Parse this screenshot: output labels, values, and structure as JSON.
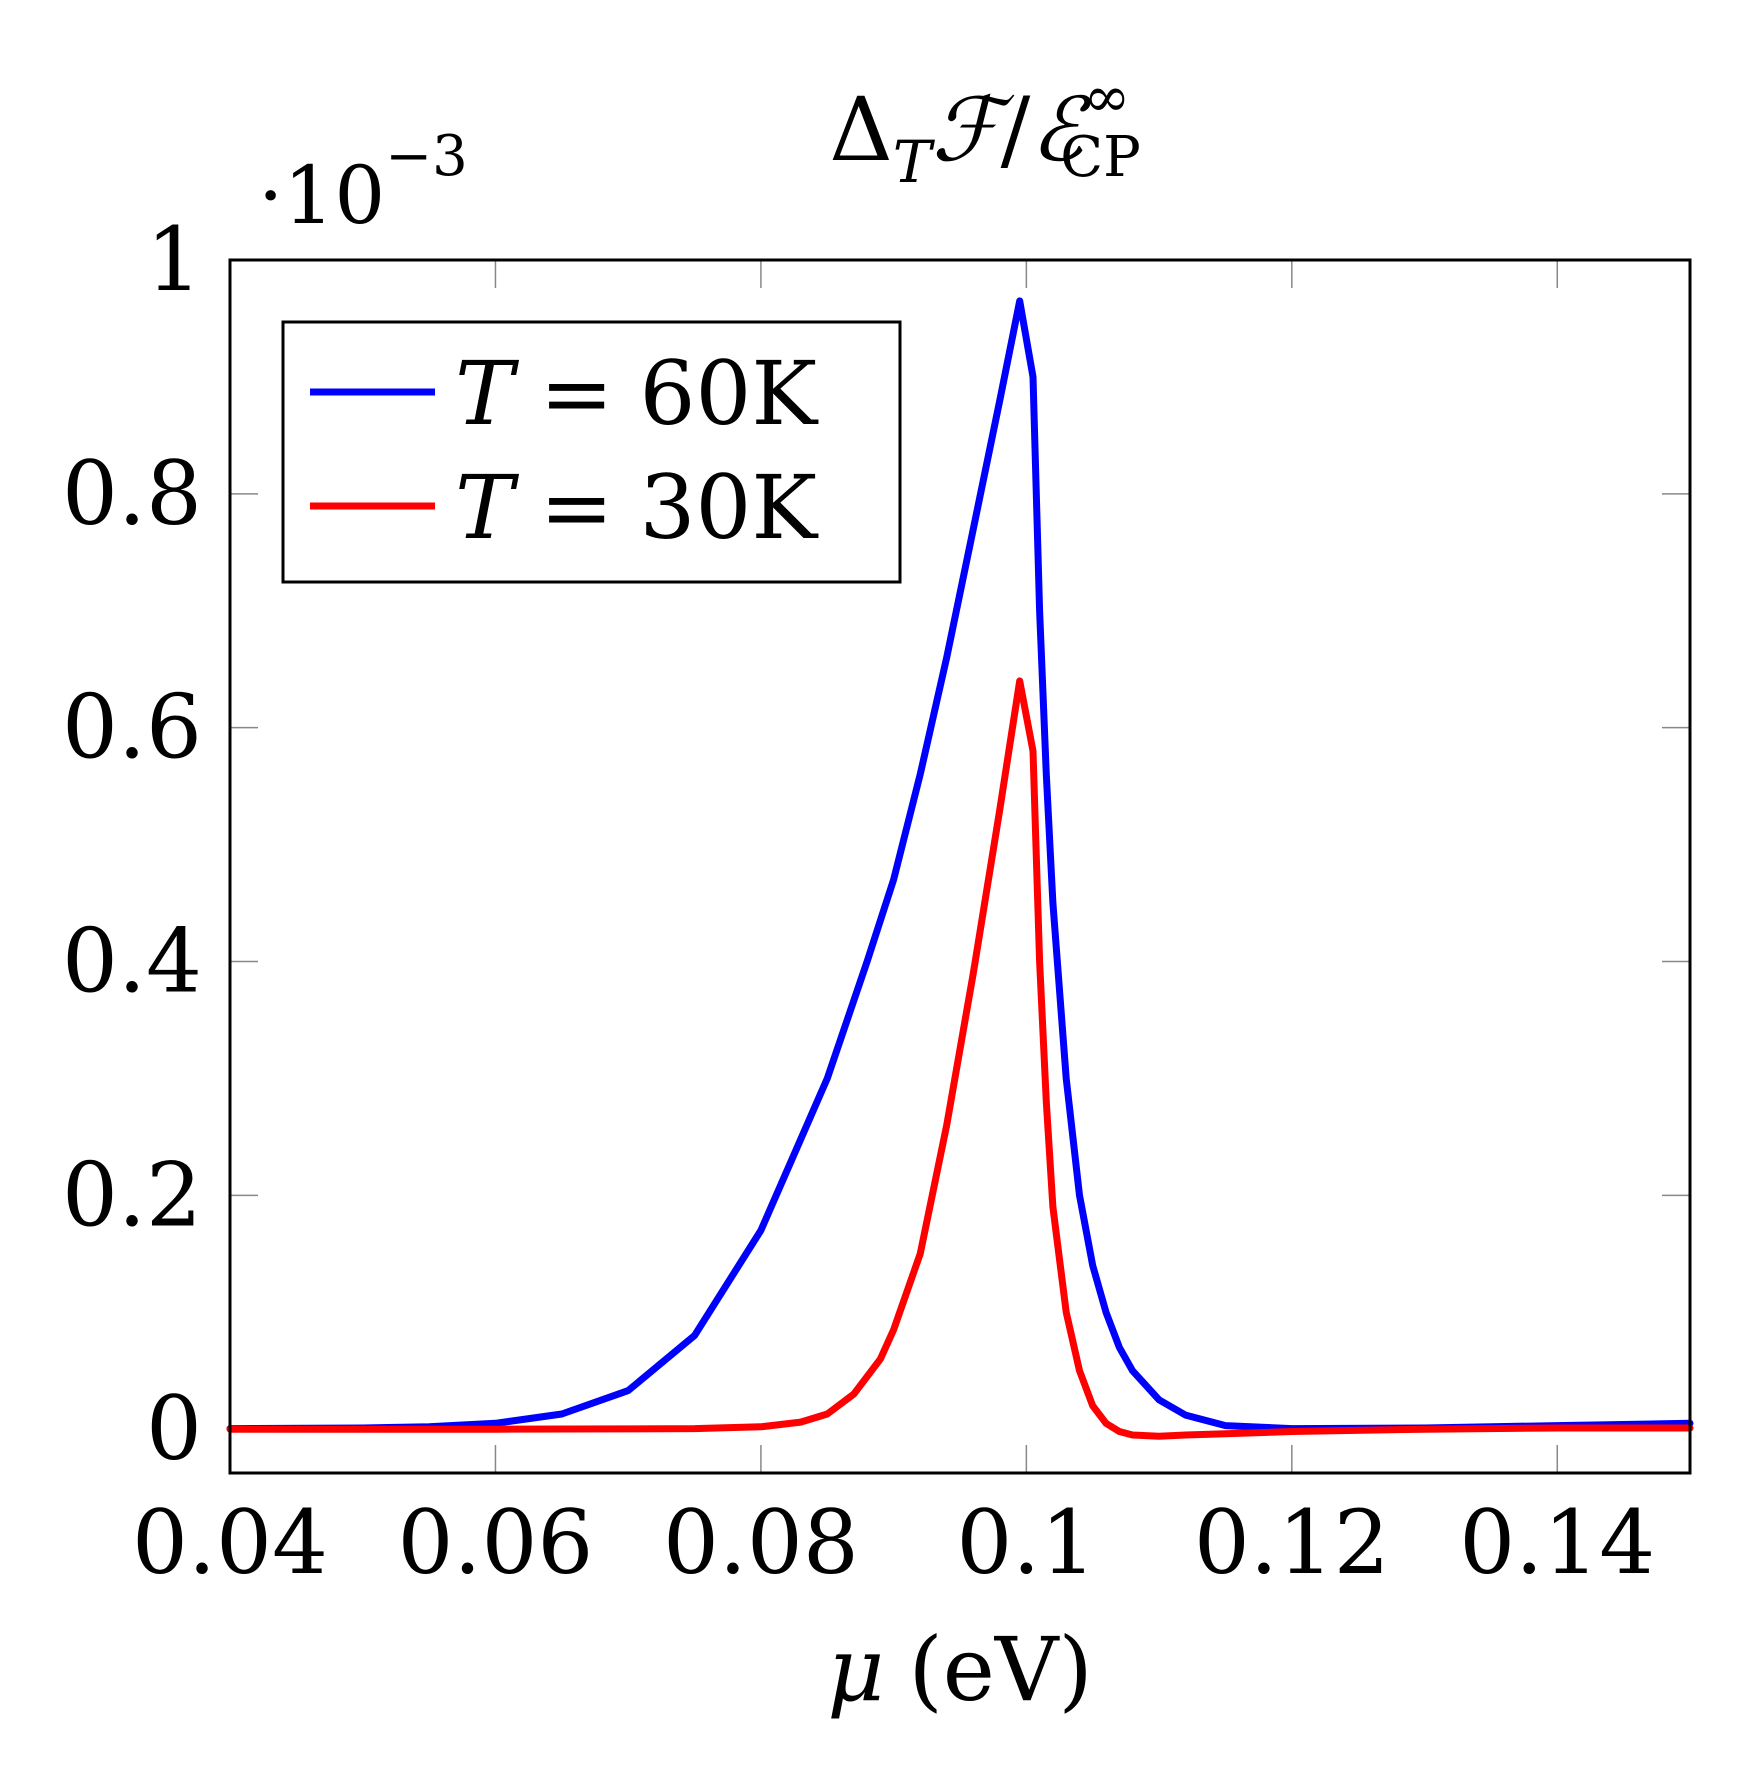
{
  "chart_data": {
    "type": "line",
    "title": {
      "delta": "Δ",
      "delta_sub": "T",
      "F": "ℱ",
      "slash": "/",
      "E": "ℰ",
      "E_sup": "∞",
      "E_sub": "CP"
    },
    "scale_label": {
      "base": "·10",
      "exponent": "−3"
    },
    "xlabel": {
      "symbol": "μ",
      "unit": "(eV)"
    },
    "ylabel": "",
    "xlim": [
      0.04,
      0.15
    ],
    "ylim": [
      -3.75e-05,
      0.001
    ],
    "x_ticks": [
      0.04,
      0.06,
      0.08,
      0.1,
      0.12,
      0.14
    ],
    "x_tick_labels": [
      "0.04",
      "0.06",
      "0.08",
      "0.1",
      "0.12",
      "0.14"
    ],
    "y_ticks": [
      0,
      0.0002,
      0.0004,
      0.0006,
      0.0008,
      0.001
    ],
    "y_tick_labels": [
      "0",
      "0.2",
      "0.4",
      "0.6",
      "0.8",
      "1"
    ],
    "grid": false,
    "legend_position": "top-left",
    "series": [
      {
        "name": "T = 60K",
        "legend_var": "T",
        "legend_eq": "=",
        "legend_val": "60K",
        "color": "#0000ff",
        "x": [
          0.04,
          0.05,
          0.055,
          0.06,
          0.065,
          0.07,
          0.075,
          0.08,
          0.085,
          0.088,
          0.09,
          0.092,
          0.094,
          0.096,
          0.098,
          0.0995,
          0.1005,
          0.101,
          0.1015,
          0.102,
          0.103,
          0.104,
          0.105,
          0.106,
          0.107,
          0.108,
          0.11,
          0.112,
          0.115,
          0.12,
          0.13,
          0.14,
          0.15
        ],
        "y": [
          5e-07,
          1e-06,
          2e-06,
          5e-06,
          1.3e-05,
          3.3e-05,
          8e-05,
          0.00017,
          0.0003,
          0.0004,
          0.00047,
          0.00056,
          0.00066,
          0.00077,
          0.00088,
          0.000965,
          0.0009,
          0.0007,
          0.00056,
          0.00045,
          0.0003,
          0.0002,
          0.00014,
          0.0001,
          7e-05,
          5e-05,
          2.5e-05,
          1.2e-05,
          3e-06,
          5e-07,
          1e-06,
          3e-06,
          5e-06
        ]
      },
      {
        "name": "T = 30K",
        "legend_var": "T",
        "legend_eq": "=",
        "legend_val": "30K",
        "color": "#ff0000",
        "x": [
          0.04,
          0.06,
          0.07,
          0.075,
          0.08,
          0.083,
          0.085,
          0.087,
          0.089,
          0.09,
          0.092,
          0.094,
          0.096,
          0.098,
          0.0995,
          0.1005,
          0.101,
          0.1015,
          0.102,
          0.103,
          0.104,
          0.105,
          0.106,
          0.107,
          0.108,
          0.11,
          0.112,
          0.115,
          0.12,
          0.13,
          0.14,
          0.15
        ],
        "y": [
          0.0,
          0.0,
          2e-07,
          5e-07,
          2e-06,
          6e-06,
          1.3e-05,
          3e-05,
          6e-05,
          8.5e-05,
          0.00015,
          0.00026,
          0.00039,
          0.00053,
          0.00064,
          0.00058,
          0.0004,
          0.00028,
          0.00019,
          0.0001,
          5e-05,
          2e-05,
          5e-06,
          -2e-06,
          -5e-06,
          -6e-06,
          -5e-06,
          -4e-06,
          -2e-06,
          0.0,
          1e-06,
          1e-06
        ]
      }
    ]
  }
}
